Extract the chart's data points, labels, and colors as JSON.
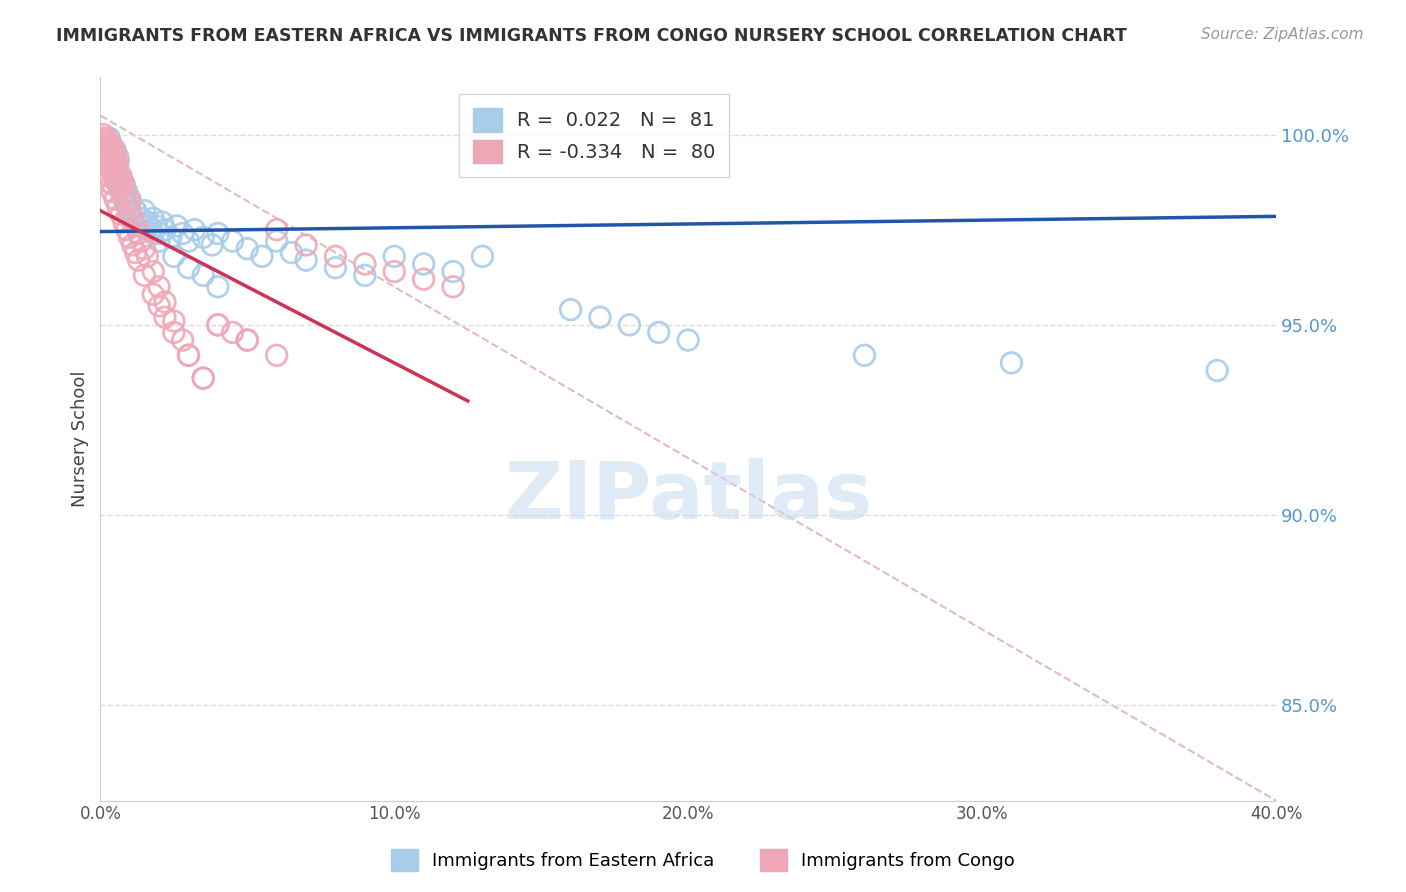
{
  "title": "IMMIGRANTS FROM EASTERN AFRICA VS IMMIGRANTS FROM CONGO NURSERY SCHOOL CORRELATION CHART",
  "source": "Source: ZipAtlas.com",
  "ylabel": "Nursery School",
  "ytick_labels": [
    "100.0%",
    "95.0%",
    "90.0%",
    "85.0%"
  ],
  "ytick_values": [
    1.0,
    0.95,
    0.9,
    0.85
  ],
  "xtick_labels": [
    "0.0%",
    "10.0%",
    "20.0%",
    "30.0%",
    "40.0%"
  ],
  "xtick_values": [
    0.0,
    0.1,
    0.2,
    0.3,
    0.4
  ],
  "xlim": [
    0.0,
    0.4
  ],
  "ylim": [
    0.825,
    1.015
  ],
  "legend_r_blue": "0.022",
  "legend_n_blue": "81",
  "legend_r_pink": "-0.334",
  "legend_n_pink": "80",
  "blue_color": "#A8CCEA",
  "pink_color": "#F0A8B8",
  "blue_line_color": "#2255AA",
  "pink_line_color": "#CC3355",
  "diag_color": "#DDAAAA",
  "watermark": "ZIPatlas",
  "background_color": "#FFFFFF",
  "blue_scatter_x": [
    0.001,
    0.001,
    0.002,
    0.002,
    0.003,
    0.003,
    0.003,
    0.004,
    0.004,
    0.005,
    0.005,
    0.005,
    0.006,
    0.006,
    0.006,
    0.007,
    0.007,
    0.008,
    0.008,
    0.009,
    0.009,
    0.01,
    0.01,
    0.011,
    0.012,
    0.013,
    0.014,
    0.015,
    0.016,
    0.017,
    0.018,
    0.019,
    0.02,
    0.021,
    0.022,
    0.024,
    0.026,
    0.028,
    0.03,
    0.032,
    0.035,
    0.038,
    0.04,
    0.045,
    0.05,
    0.055,
    0.06,
    0.065,
    0.07,
    0.08,
    0.09,
    0.1,
    0.11,
    0.12,
    0.13,
    0.002,
    0.003,
    0.004,
    0.005,
    0.006,
    0.007,
    0.008,
    0.009,
    0.01,
    0.012,
    0.014,
    0.016,
    0.018,
    0.02,
    0.025,
    0.03,
    0.035,
    0.04,
    0.16,
    0.17,
    0.18,
    0.19,
    0.2,
    0.26,
    0.31,
    0.38
  ],
  "blue_scatter_y": [
    0.997,
    0.999,
    0.995,
    0.998,
    0.993,
    0.996,
    0.999,
    0.991,
    0.994,
    0.989,
    0.992,
    0.996,
    0.987,
    0.99,
    0.994,
    0.985,
    0.988,
    0.983,
    0.986,
    0.981,
    0.984,
    0.979,
    0.982,
    0.977,
    0.98,
    0.978,
    0.976,
    0.98,
    0.977,
    0.975,
    0.978,
    0.976,
    0.974,
    0.977,
    0.975,
    0.973,
    0.976,
    0.974,
    0.972,
    0.975,
    0.973,
    0.971,
    0.974,
    0.972,
    0.97,
    0.968,
    0.972,
    0.969,
    0.967,
    0.965,
    0.963,
    0.968,
    0.966,
    0.964,
    0.968,
    0.997,
    0.999,
    0.995,
    0.993,
    0.991,
    0.989,
    0.987,
    0.985,
    0.983,
    0.98,
    0.978,
    0.976,
    0.974,
    0.972,
    0.968,
    0.965,
    0.963,
    0.96,
    0.954,
    0.952,
    0.95,
    0.948,
    0.946,
    0.942,
    0.94,
    0.938
  ],
  "pink_scatter_x": [
    0.001,
    0.001,
    0.001,
    0.002,
    0.002,
    0.002,
    0.002,
    0.003,
    0.003,
    0.003,
    0.003,
    0.004,
    0.004,
    0.004,
    0.005,
    0.005,
    0.005,
    0.006,
    0.006,
    0.006,
    0.007,
    0.007,
    0.008,
    0.008,
    0.009,
    0.01,
    0.01,
    0.011,
    0.012,
    0.013,
    0.014,
    0.015,
    0.016,
    0.018,
    0.02,
    0.022,
    0.025,
    0.028,
    0.03,
    0.035,
    0.04,
    0.045,
    0.05,
    0.06,
    0.07,
    0.08,
    0.09,
    0.1,
    0.11,
    0.12,
    0.001,
    0.001,
    0.002,
    0.002,
    0.003,
    0.003,
    0.004,
    0.004,
    0.005,
    0.006,
    0.007,
    0.008,
    0.009,
    0.01,
    0.011,
    0.012,
    0.013,
    0.015,
    0.018,
    0.02,
    0.022,
    0.025,
    0.03,
    0.035,
    0.04,
    0.05,
    0.06,
    0.002,
    0.003,
    0.005
  ],
  "pink_scatter_y": [
    0.999,
    1.0,
    0.998,
    0.997,
    0.999,
    0.996,
    0.998,
    0.995,
    0.997,
    0.993,
    0.996,
    0.992,
    0.994,
    0.997,
    0.99,
    0.992,
    0.995,
    0.988,
    0.99,
    0.993,
    0.986,
    0.989,
    0.984,
    0.987,
    0.982,
    0.98,
    0.983,
    0.978,
    0.976,
    0.974,
    0.972,
    0.97,
    0.968,
    0.964,
    0.96,
    0.956,
    0.951,
    0.946,
    0.942,
    0.936,
    0.95,
    0.948,
    0.946,
    0.975,
    0.971,
    0.968,
    0.966,
    0.964,
    0.962,
    0.96,
    0.998,
    0.996,
    0.995,
    0.993,
    0.991,
    0.989,
    0.987,
    0.985,
    0.983,
    0.981,
    0.979,
    0.977,
    0.975,
    0.973,
    0.971,
    0.969,
    0.967,
    0.963,
    0.958,
    0.955,
    0.952,
    0.948,
    0.942,
    0.936,
    0.95,
    0.946,
    0.942,
    0.994,
    0.992,
    0.988
  ],
  "blue_trend_x": [
    0.0,
    0.4
  ],
  "blue_trend_y": [
    0.9745,
    0.9785
  ],
  "pink_trend_x": [
    0.0,
    0.125
  ],
  "pink_trend_y": [
    0.98,
    0.93
  ],
  "diag_line_x": [
    0.0,
    0.4
  ],
  "diag_line_y": [
    1.005,
    0.825
  ]
}
